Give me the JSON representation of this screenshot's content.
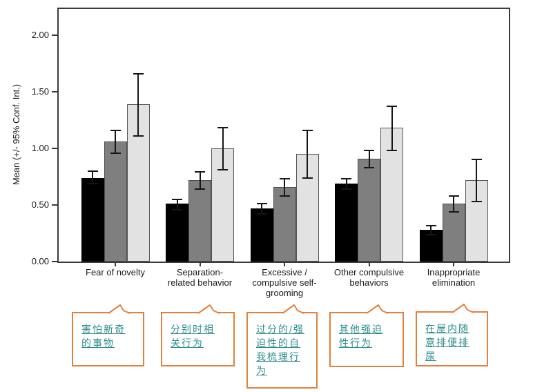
{
  "chart_data": {
    "type": "bar",
    "title": "",
    "xlabel": "",
    "ylabel": "Mean (+/- 95% Conf. Int.)",
    "ylim": [
      0,
      2.23
    ],
    "ytick_labels": [
      "0.00",
      "0.50",
      "1.00",
      "1.50",
      "2.00"
    ],
    "yticks": [
      0.0,
      0.5,
      1.0,
      1.5,
      2.0
    ],
    "grid": false,
    "legend_position": "none",
    "error_bars": "95% confidence interval",
    "categories": [
      "Fear of novelty",
      "Separation-related behavior",
      "Excessive / compulsive self-grooming",
      "Other compulsive behaviors",
      "Inappropriate elimination"
    ],
    "category_display": [
      "Fear of novelty",
      "Separation-\nrelated behavior",
      "Excessive /\ncompulsive self-\ngrooming",
      "Other compulsive\nbehaviors",
      "Inappropriate\nelimination"
    ],
    "series": [
      {
        "name": "black",
        "color": "#000000",
        "edge_color": "#000000",
        "values": [
          0.74,
          0.51,
          0.47,
          0.69,
          0.28
        ],
        "ci_low": [
          0.69,
          0.46,
          0.42,
          0.64,
          0.24
        ],
        "ci_high": [
          0.8,
          0.55,
          0.51,
          0.73,
          0.32
        ]
      },
      {
        "name": "dark-gray",
        "color": "#7f7f7f",
        "edge_color": "#4d4d4d",
        "values": [
          1.06,
          0.72,
          0.66,
          0.91,
          0.51
        ],
        "ci_low": [
          0.96,
          0.64,
          0.58,
          0.83,
          0.44
        ],
        "ci_high": [
          1.16,
          0.79,
          0.73,
          0.98,
          0.58
        ]
      },
      {
        "name": "light-gray",
        "color": "#e2e2e2",
        "edge_color": "#555555",
        "values": [
          1.39,
          1.0,
          0.95,
          1.18,
          0.72
        ],
        "ci_low": [
          1.11,
          0.81,
          0.74,
          0.98,
          0.53
        ],
        "ci_high": [
          1.66,
          1.18,
          1.16,
          1.37,
          0.9
        ]
      }
    ]
  },
  "callouts": {
    "border_color": "#e0813c",
    "text_color": "#2c8c8c",
    "items": [
      {
        "text": "害怕新奇\n的事物",
        "full_text": "害怕新奇的事物",
        "for_category": "Fear of novelty"
      },
      {
        "text": "分别时相\n关行为",
        "full_text": "分别时相关行为",
        "for_category": "Separation-related behavior"
      },
      {
        "text": "过分的/强\n迫性的自\n我梳理行\n为",
        "full_text": "过分的/强迫性的自我梳理行为",
        "for_category": "Excessive / compulsive self-grooming"
      },
      {
        "text": "其他强迫\n性行为",
        "full_text": "其他强迫性行为",
        "for_category": "Other compulsive behaviors"
      },
      {
        "text": "在屋内随\n意排便排\n尿",
        "full_text": "在屋内随意排便排尿",
        "for_category": "Inappropriate elimination"
      }
    ]
  }
}
